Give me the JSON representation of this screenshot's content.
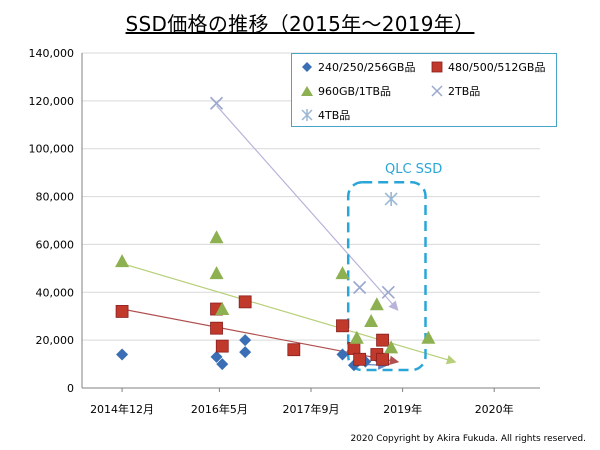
{
  "title": "SSD価格の推移（2015年～2019年）",
  "copyright": "2020 Copyright by Akira Fukuda. All rights reserved.",
  "annotation": "QLC SSD",
  "chart_data": {
    "type": "scatter",
    "title": "SSD価格の推移（2015年～2019年）",
    "xlabel": "",
    "ylabel": "",
    "ylim": [
      0,
      140000
    ],
    "y_ticks": [
      "0",
      "20,000",
      "40,000",
      "60,000",
      "80,000",
      "100,000",
      "120,000",
      "140,000"
    ],
    "x_ticks": [
      {
        "x": 0,
        "label": "2014年12月"
      },
      {
        "x": 17,
        "label": "2016年5月"
      },
      {
        "x": 33,
        "label": "2017年9月"
      },
      {
        "x": 49,
        "label": "2019年"
      },
      {
        "x": 65,
        "label": "2020年"
      }
    ],
    "xlim": [
      -7,
      73
    ],
    "grid": "y",
    "legend_position": "top-right",
    "series": [
      {
        "name": "240/250/256GB品",
        "marker": "diamond",
        "color": "#3a6fb5",
        "points": [
          [
            0,
            14000
          ],
          [
            16.5,
            13000
          ],
          [
            17.5,
            10000
          ],
          [
            21.5,
            20000
          ],
          [
            21.5,
            15000
          ],
          [
            38.5,
            14000
          ],
          [
            40.5,
            9500
          ],
          [
            42.5,
            11000
          ],
          [
            44.5,
            13000
          ]
        ]
      },
      {
        "name": "480/500/512GB品",
        "marker": "square",
        "color": "#c0392b",
        "points": [
          [
            0,
            32000
          ],
          [
            16.5,
            33000
          ],
          [
            16.5,
            25000
          ],
          [
            17.5,
            17500
          ],
          [
            21.5,
            36000
          ],
          [
            30,
            16000
          ],
          [
            38.5,
            26000
          ],
          [
            40.5,
            16500
          ],
          [
            41.5,
            12000
          ],
          [
            44.5,
            14000
          ],
          [
            45.5,
            12000
          ],
          [
            45.5,
            20000
          ]
        ]
      },
      {
        "name": "960GB/1TB品",
        "marker": "triangle",
        "color": "#8db050",
        "points": [
          [
            0,
            53000
          ],
          [
            16.5,
            63000
          ],
          [
            16.5,
            48000
          ],
          [
            17.5,
            33000
          ],
          [
            38.5,
            48000
          ],
          [
            41,
            21000
          ],
          [
            43.5,
            28000
          ],
          [
            44.5,
            35000
          ],
          [
            47,
            17000
          ],
          [
            53.5,
            21000
          ]
        ]
      },
      {
        "name": "2TB品",
        "marker": "x",
        "color": "#9aa7cf",
        "points": [
          [
            16.5,
            119000
          ],
          [
            41.5,
            42000
          ],
          [
            46.5,
            40000
          ]
        ]
      },
      {
        "name": "4TB品",
        "marker": "star",
        "color": "#9ab7d6",
        "points": [
          [
            47,
            79000
          ]
        ]
      }
    ],
    "trendlines": [
      {
        "series": "2TB品",
        "color": "#b7b3da",
        "from": [
          16.5,
          118000
        ],
        "to": [
          48,
          33000
        ]
      },
      {
        "series": "960GB/1TB品",
        "color": "#b7cf79",
        "from": [
          0,
          52000
        ],
        "to": [
          58,
          11000
        ]
      },
      {
        "series": "480/500/512GB品",
        "color": "#b05050",
        "from": [
          0,
          33000
        ],
        "to": [
          48,
          11000
        ]
      },
      {
        "series": "240/250/256GB品",
        "color": "#6080c0",
        "from": [
          40,
          10000
        ],
        "to": [
          46,
          9500
        ]
      }
    ],
    "highlight_box": {
      "label": "QLC SSD",
      "x_range": [
        39.5,
        53
      ],
      "y_range": [
        7500,
        86000
      ],
      "color": "#2aa5d8"
    }
  }
}
